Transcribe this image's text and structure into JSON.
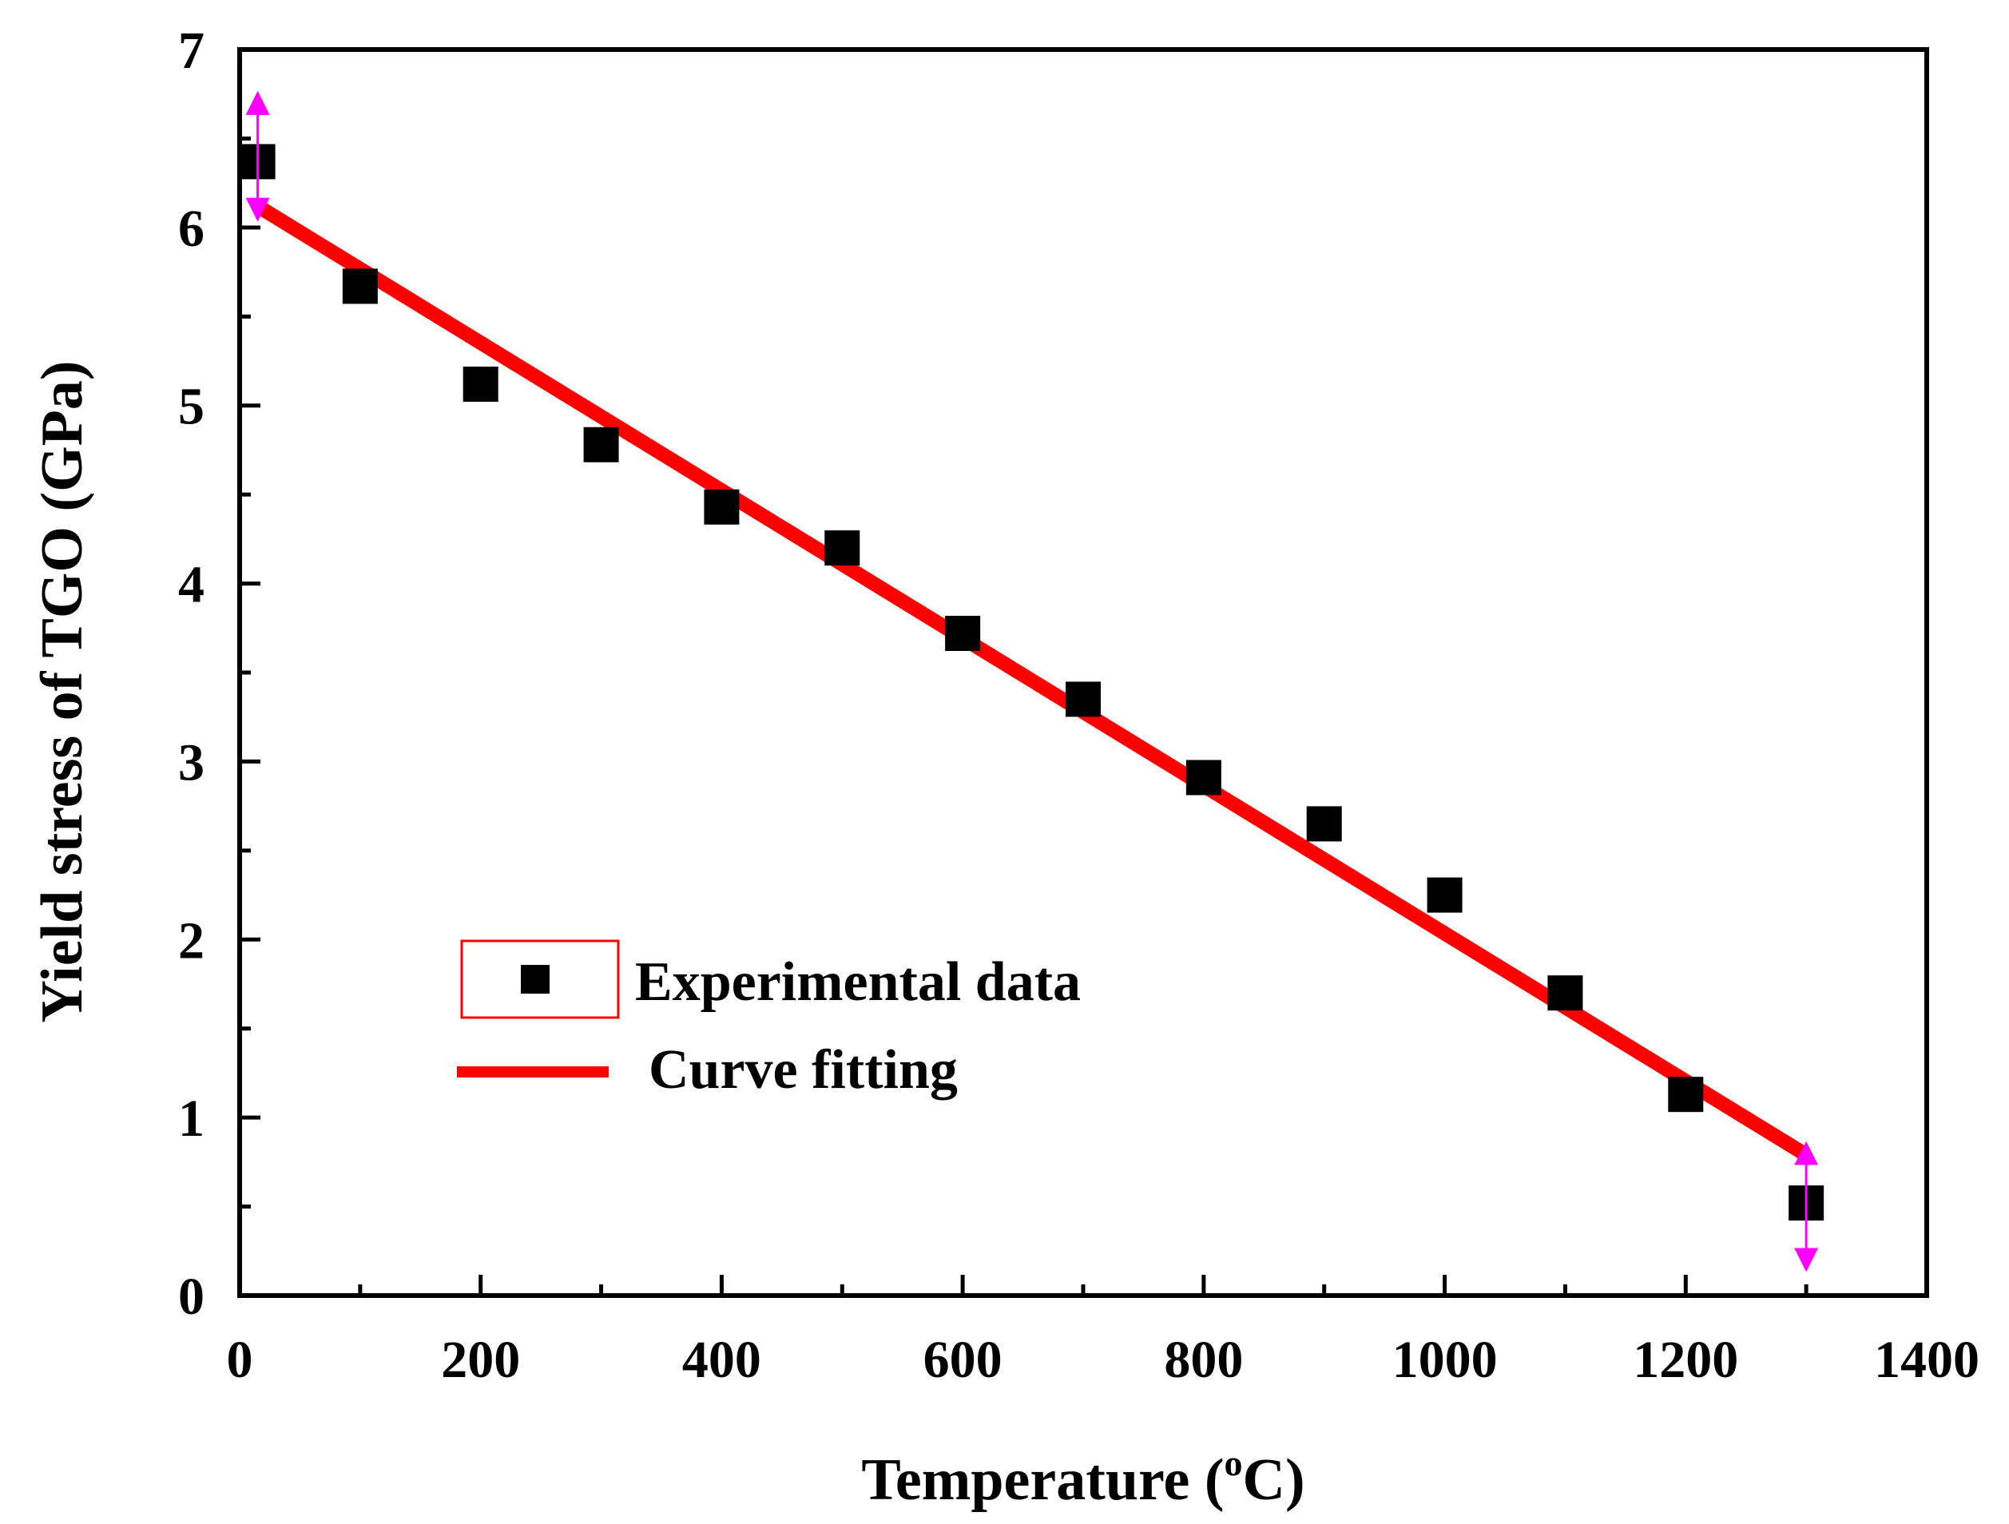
{
  "chart_data": {
    "type": "scatter",
    "title": "",
    "xlabel": "Temperature (",
    "xlabel_sup": "o",
    "xlabel_unit": "C)",
    "ylabel": "Yield stress of TGO (GPa)",
    "xlim": [
      0,
      1400
    ],
    "ylim": [
      0,
      7
    ],
    "xticks": [
      0,
      200,
      400,
      600,
      800,
      1000,
      1200,
      1400
    ],
    "yticks": [
      0,
      1,
      2,
      3,
      4,
      5,
      6,
      7
    ],
    "x_minor_step": 100,
    "y_minor_step": 0.5,
    "series": [
      {
        "name": "Experimental data",
        "kind": "scatter",
        "marker": "square",
        "color": "#000000",
        "x": [
          15,
          100,
          200,
          300,
          400,
          500,
          600,
          700,
          800,
          900,
          1000,
          1100,
          1200,
          1300
        ],
        "y": [
          6.37,
          5.67,
          5.12,
          4.78,
          4.43,
          4.2,
          3.72,
          3.35,
          2.91,
          2.65,
          2.25,
          1.7,
          1.13,
          0.52
        ]
      },
      {
        "name": "Curve fitting",
        "kind": "line",
        "color": "#ff0000",
        "x": [
          15,
          1300
        ],
        "y": [
          6.12,
          0.79
        ]
      }
    ],
    "annotations": [
      {
        "kind": "double-arrow",
        "color": "#ff00ff",
        "x": 15,
        "y_from": 6.1,
        "y_to": 6.7
      },
      {
        "kind": "double-arrow",
        "color": "#ff00ff",
        "x": 1300,
        "y_from": 0.8,
        "y_to": 0.2
      }
    ],
    "legend": {
      "position": "lower-left",
      "entries": [
        "Experimental data",
        "Curve fitting"
      ]
    }
  }
}
